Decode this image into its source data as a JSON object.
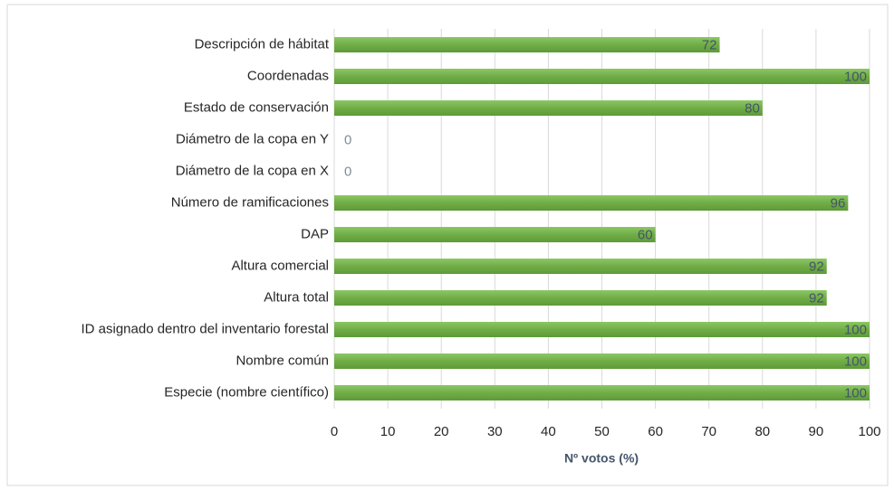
{
  "chart_data": {
    "type": "bar",
    "orientation": "horizontal",
    "x_label": "Nº votos (%)",
    "categories": [
      "Descripción de hábitat",
      "Coordenadas",
      "Estado de conservación",
      "Diámetro de la copa en Y",
      "Diámetro de la copa en X",
      "Número de ramificaciones",
      "DAP",
      "Altura comercial",
      "Altura total",
      "ID asignado dentro del inventario forestal",
      "Nombre común",
      "Especie (nombre científico)"
    ],
    "values": [
      72,
      100,
      80,
      0,
      0,
      96,
      60,
      92,
      92,
      100,
      100,
      100
    ],
    "color": "#70ad47",
    "xlim": [
      0,
      100
    ],
    "xticks": [
      0,
      10,
      20,
      30,
      40,
      50,
      60,
      70,
      80,
      90,
      100
    ],
    "grid": true
  }
}
